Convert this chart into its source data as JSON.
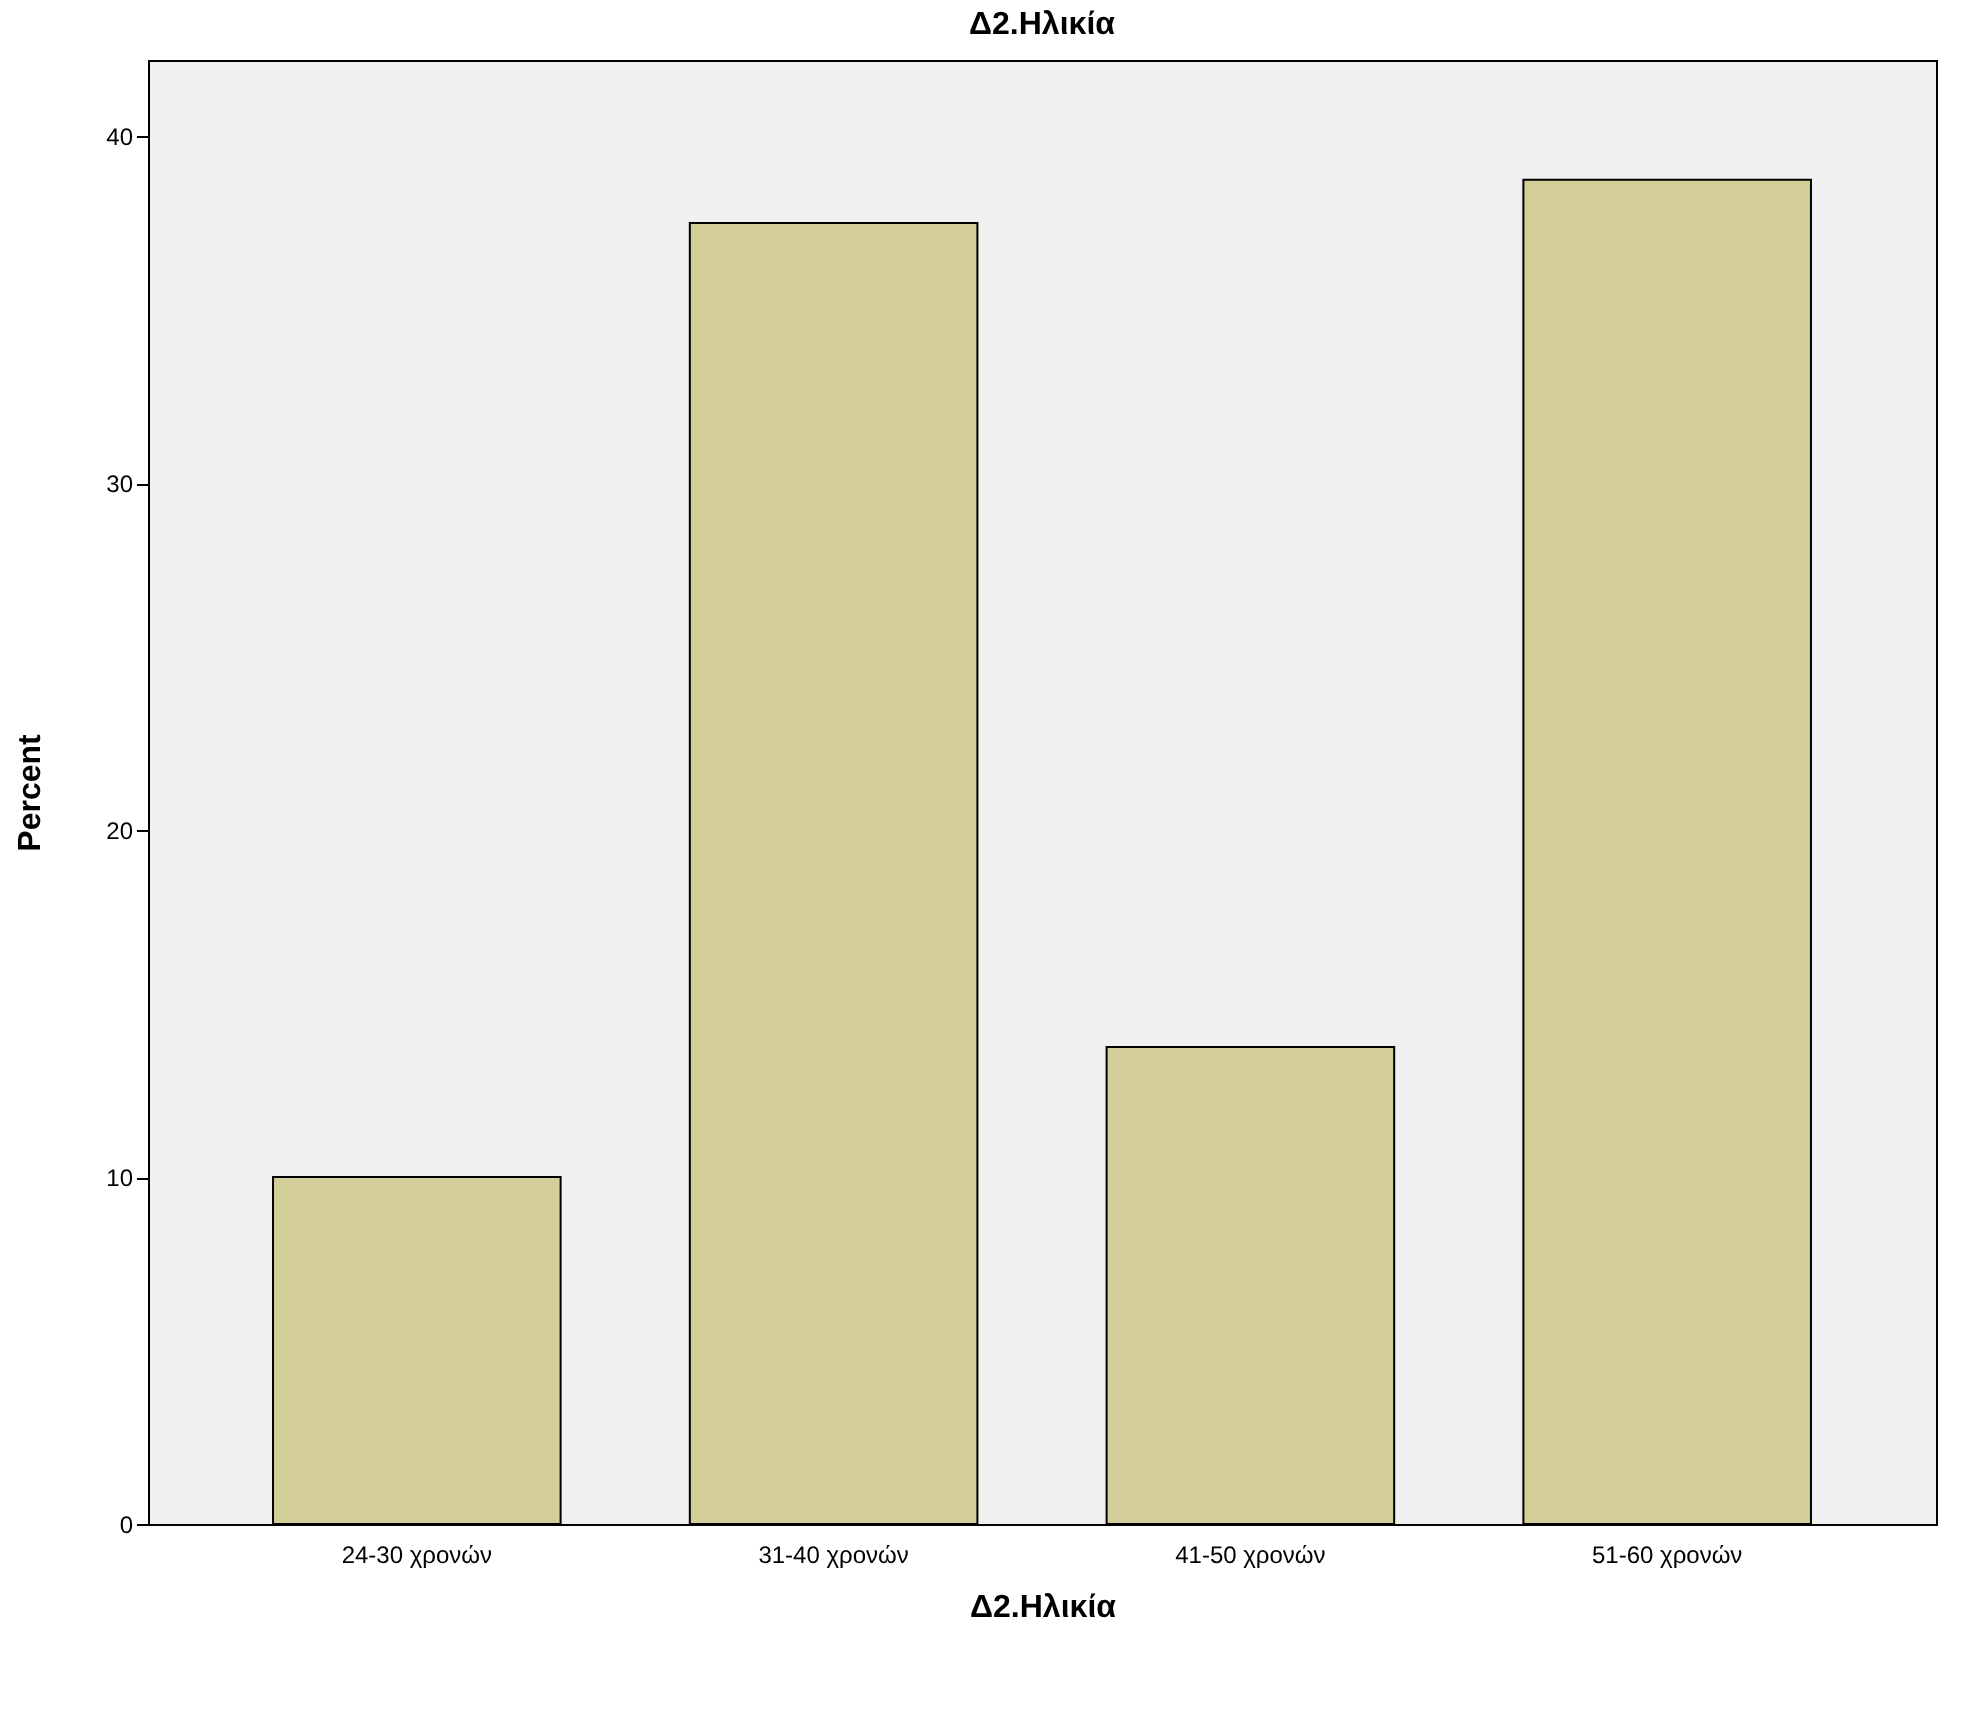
{
  "chart_data": {
    "type": "bar",
    "title": "Δ2.Ηλικία",
    "xlabel": "Δ2.Ηλικία",
    "ylabel": "Percent",
    "categories": [
      "24-30 χρονών",
      "31-40 χρονών",
      "41-50 χρονών",
      "51-60 χρονών"
    ],
    "values": [
      10,
      37.5,
      13.75,
      38.75
    ],
    "color": "#d3ce97",
    "ylim": [
      0,
      42.2
    ],
    "yticks": [
      0,
      10,
      20,
      30,
      40
    ],
    "grid": false
  }
}
